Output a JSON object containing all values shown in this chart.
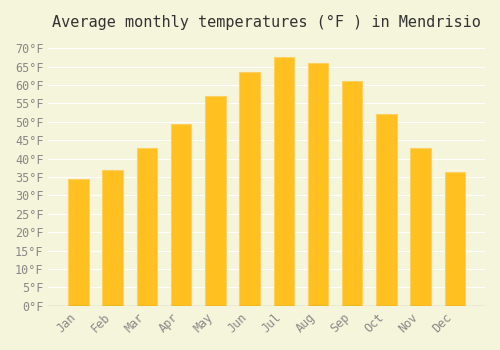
{
  "title": "Average monthly temperatures (°F ) in Mendrisio",
  "months": [
    "Jan",
    "Feb",
    "Mar",
    "Apr",
    "May",
    "Jun",
    "Jul",
    "Aug",
    "Sep",
    "Oct",
    "Nov",
    "Dec"
  ],
  "values": [
    34.5,
    37.0,
    43.0,
    49.5,
    57.0,
    63.5,
    67.5,
    66.0,
    61.0,
    52.0,
    43.0,
    36.5
  ],
  "bar_color_face": "#FFC020",
  "bar_color_edge": "#FFD060",
  "ylim": [
    0,
    72
  ],
  "yticks": [
    0,
    5,
    10,
    15,
    20,
    25,
    30,
    35,
    40,
    45,
    50,
    55,
    60,
    65,
    70
  ],
  "background_color": "#F5F5DC",
  "grid_color": "#FFFFFF",
  "title_fontsize": 11,
  "tick_fontsize": 8.5
}
